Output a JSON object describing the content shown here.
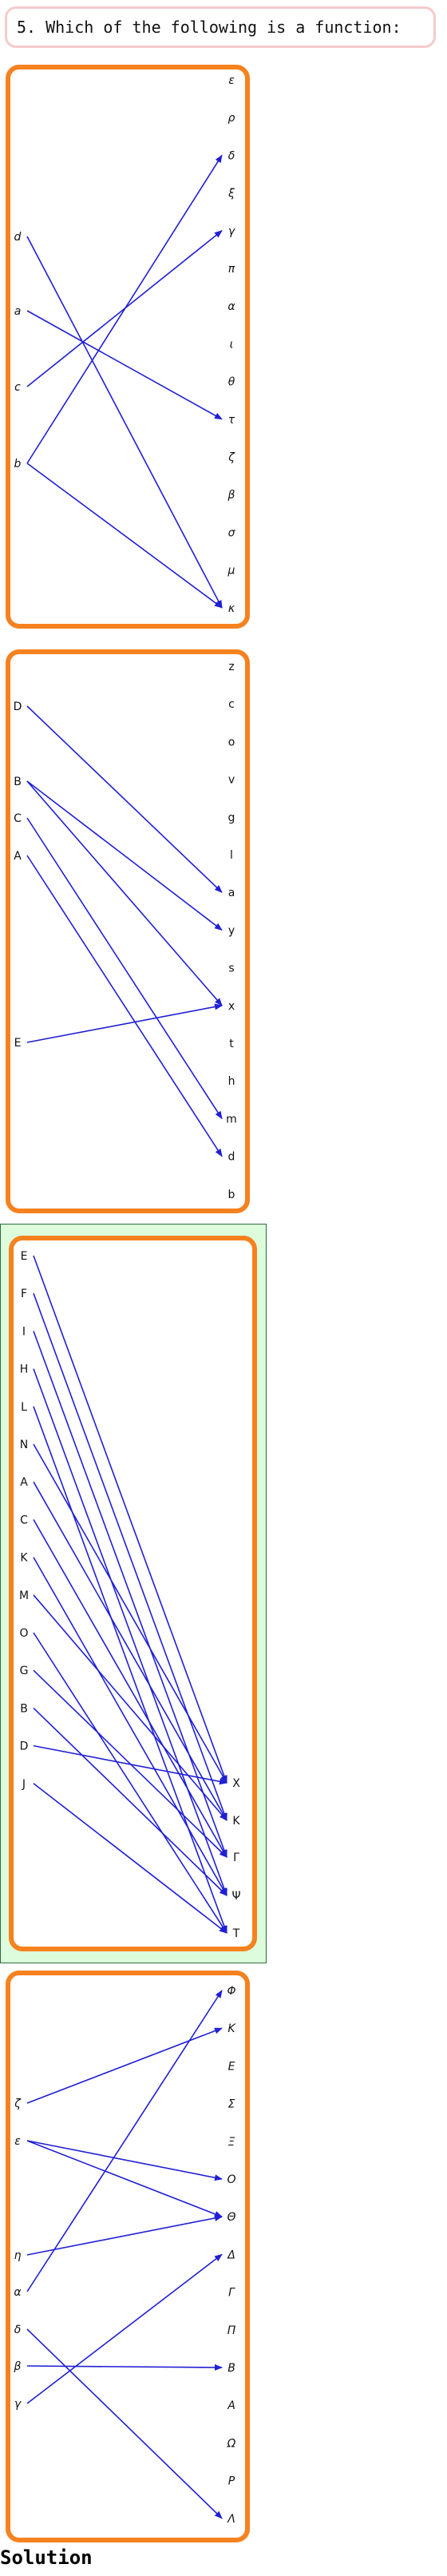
{
  "question": {
    "text": "5. Which of the following is a function:"
  },
  "solution_label": "Solution",
  "colors": {
    "box_border": "#f5821f",
    "arrow": "#1f1fd6",
    "highlight_fill": "#dcfcdc",
    "highlight_border": "#2e6b3c",
    "question_border": "#f6caca"
  },
  "diagrams": [
    {
      "id": "diagram-1",
      "highlighted": false,
      "italic": true,
      "domain": [
        "d",
        "a",
        "c",
        "b"
      ],
      "codomain": [
        "ε",
        "ρ",
        "δ",
        "ξ",
        "γ",
        "π",
        "α",
        "ι",
        "θ",
        "τ",
        "ζ",
        "β",
        "σ",
        "μ",
        "κ"
      ],
      "arrows": [
        [
          "d",
          "κ"
        ],
        [
          "a",
          "τ"
        ],
        [
          "c",
          "γ"
        ],
        [
          "b",
          "δ"
        ],
        [
          "b",
          "κ"
        ]
      ]
    },
    {
      "id": "diagram-2",
      "highlighted": false,
      "italic": false,
      "domain": [
        "D",
        "B",
        "C",
        "A",
        "E"
      ],
      "codomain": [
        "z",
        "c",
        "o",
        "v",
        "g",
        "l",
        "a",
        "y",
        "s",
        "x",
        "t",
        "h",
        "m",
        "d",
        "b"
      ],
      "arrows": [
        [
          "D",
          "a"
        ],
        [
          "B",
          "y"
        ],
        [
          "B",
          "x"
        ],
        [
          "C",
          "m"
        ],
        [
          "A",
          "d"
        ],
        [
          "E",
          "x"
        ]
      ]
    },
    {
      "id": "diagram-3",
      "highlighted": true,
      "italic": false,
      "domain": [
        "E",
        "F",
        "I",
        "H",
        "L",
        "N",
        "A",
        "C",
        "K",
        "M",
        "O",
        "G",
        "B",
        "D",
        "J"
      ],
      "codomain": [
        "X",
        "K",
        "Γ",
        "Ψ",
        "T"
      ],
      "arrows": [
        [
          "E",
          "X"
        ],
        [
          "F",
          "K"
        ],
        [
          "I",
          "Γ"
        ],
        [
          "H",
          "Ψ"
        ],
        [
          "L",
          "T"
        ],
        [
          "N",
          "X"
        ],
        [
          "A",
          "K"
        ],
        [
          "C",
          "Γ"
        ],
        [
          "K",
          "Ψ"
        ],
        [
          "M",
          "K"
        ],
        [
          "O",
          "T"
        ],
        [
          "G",
          "Γ"
        ],
        [
          "B",
          "Ψ"
        ],
        [
          "D",
          "X"
        ],
        [
          "J",
          "T"
        ]
      ]
    },
    {
      "id": "diagram-4",
      "highlighted": false,
      "italic": true,
      "domain": [
        "ζ",
        "ε",
        "η",
        "α",
        "δ",
        "β",
        "γ"
      ],
      "codomain": [
        "Φ",
        "K",
        "E",
        "Σ",
        "Ξ",
        "O",
        "Θ",
        "Δ",
        "Γ",
        "Π",
        "B",
        "A",
        "Ω",
        "P",
        "Λ"
      ],
      "arrows": [
        [
          "ζ",
          "K"
        ],
        [
          "ε",
          "O"
        ],
        [
          "ε",
          "Θ"
        ],
        [
          "η",
          "Θ"
        ],
        [
          "α",
          "Φ"
        ],
        [
          "δ",
          "Λ"
        ],
        [
          "β",
          "B"
        ],
        [
          "γ",
          "Δ"
        ]
      ]
    }
  ]
}
